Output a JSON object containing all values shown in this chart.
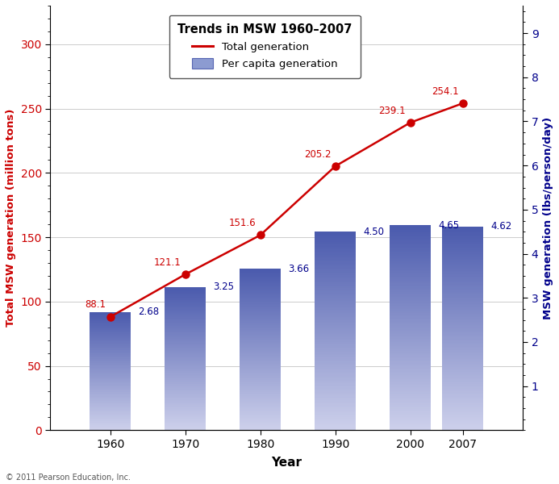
{
  "years": [
    1960,
    1970,
    1980,
    1990,
    2000,
    2007
  ],
  "total_gen": [
    88.1,
    121.1,
    151.6,
    205.2,
    239.1,
    254.1
  ],
  "per_capita": [
    2.68,
    3.25,
    3.66,
    4.5,
    4.65,
    4.62
  ],
  "bar_color_bottom": "#cdd0eb",
  "bar_color_top": "#4a5aad",
  "line_color": "#cc0000",
  "left_ylabel": "Total MSW generation (million tons)",
  "right_ylabel": "MSW generation (lbs/person/day)",
  "xlabel": "Year",
  "title": "Trends in MSW 1960–2007",
  "legend_line_label": "Total generation",
  "legend_bar_label": "Per capita generation",
  "left_ylim": [
    0,
    330
  ],
  "left_yticks": [
    0,
    50,
    100,
    150,
    200,
    250,
    300
  ],
  "right_ylim": [
    0,
    9.625
  ],
  "right_yticks": [
    1,
    2,
    3,
    4,
    5,
    6,
    7,
    8,
    9
  ],
  "bar_width": 5.5,
  "annotation_color_left": "#cc0000",
  "annotation_color_right": "#00008b",
  "footer_text": "© 2011 Pearson Education, Inc.",
  "total_labels": [
    "88.1",
    "121.1",
    "151.6",
    "205.2",
    "239.1",
    "254.1"
  ],
  "pc_labels": [
    "2.68",
    "3.25",
    "3.66",
    "4.50",
    "4.65",
    "4.62"
  ],
  "xlim": [
    1952,
    2015
  ]
}
